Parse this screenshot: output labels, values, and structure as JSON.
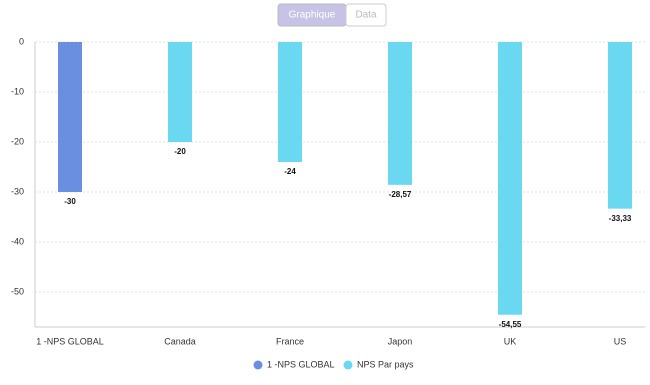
{
  "tabs": [
    "Graphique",
    "Data"
  ],
  "chart_data": {
    "type": "bar",
    "categories": [
      "1 -NPS GLOBAL",
      "Canada",
      "France",
      "Japon",
      "UK",
      "US"
    ],
    "series": [
      {
        "name": "1 -NPS GLOBAL",
        "color": "#6a8fe0",
        "values": [
          -30,
          null,
          null,
          null,
          null,
          null
        ],
        "value_labels": [
          "-30",
          null,
          null,
          null,
          null,
          null
        ]
      },
      {
        "name": "NPS Par pays",
        "color": "#6bd8f2",
        "values": [
          null,
          -20,
          -24,
          -28.57,
          -54.55,
          -33.33
        ],
        "value_labels": [
          null,
          "-20",
          "-24",
          "-28,57",
          "-54,55",
          "-33,33"
        ]
      }
    ],
    "ylim": [
      -57,
      0
    ],
    "yticks": [
      0,
      -10,
      -20,
      -30,
      -40,
      -50
    ],
    "grid": true,
    "legend": "bottom"
  }
}
